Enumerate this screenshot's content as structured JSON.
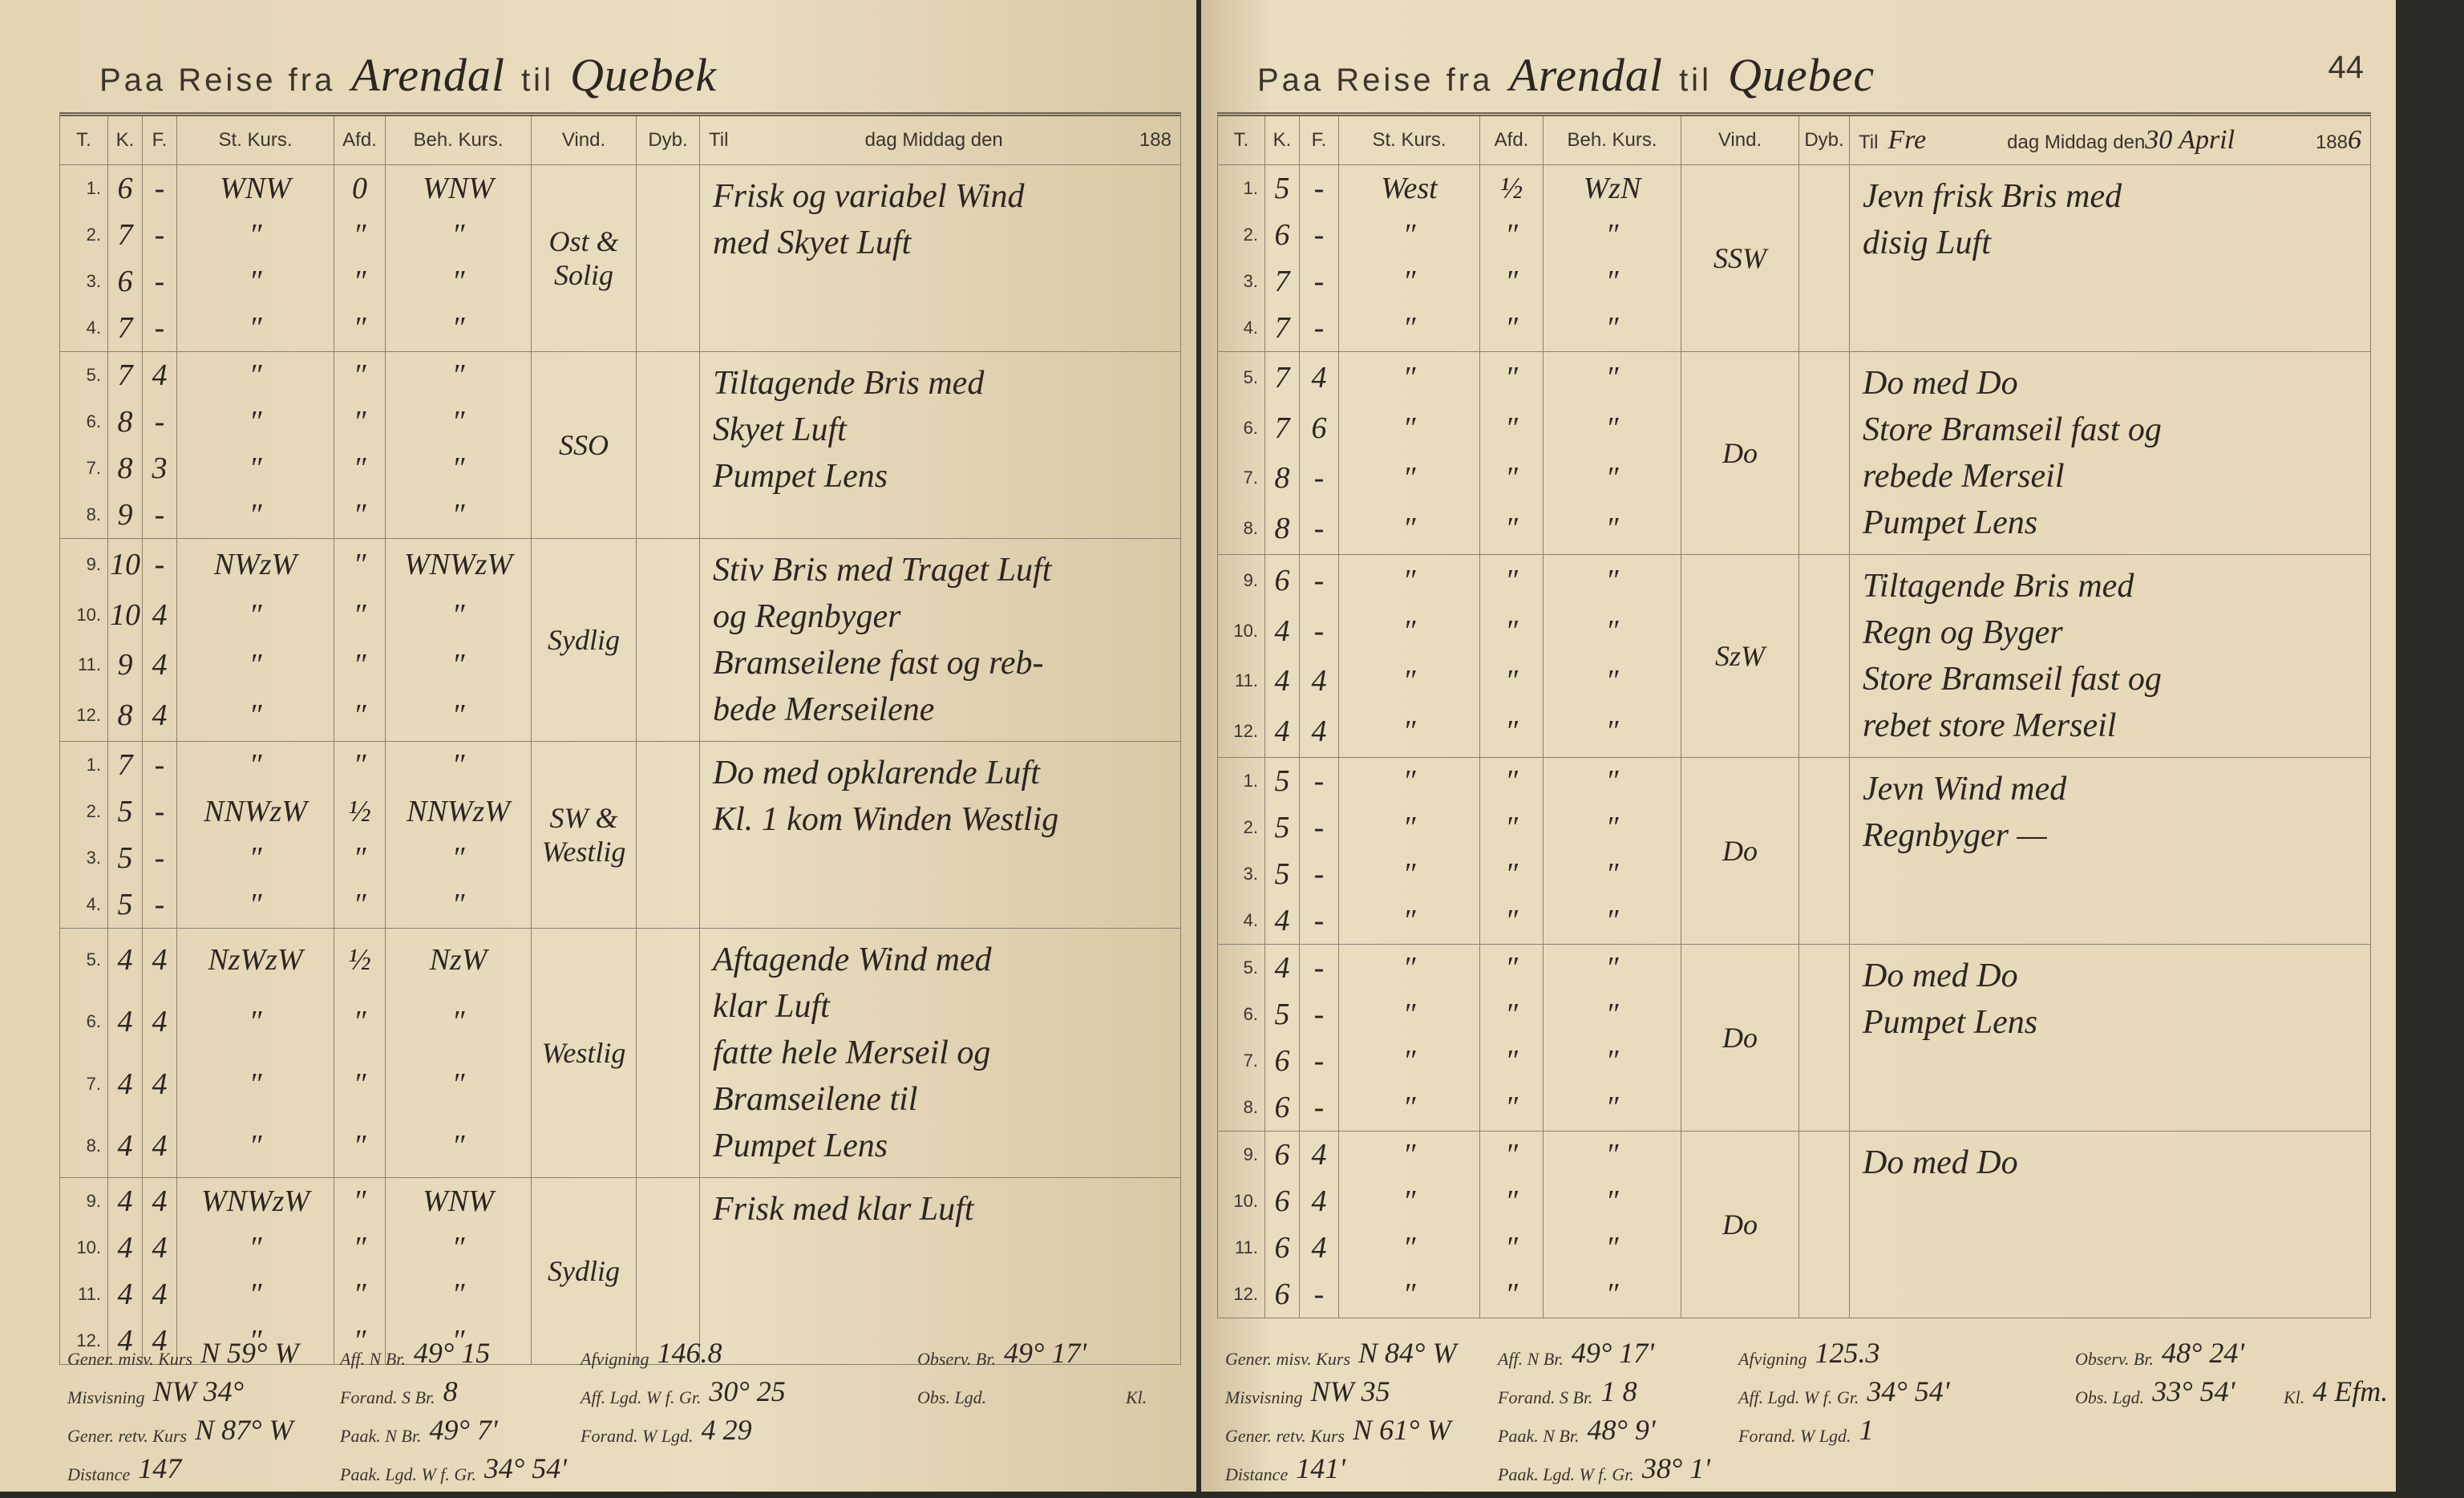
{
  "left_page": {
    "title_prefix": "Paa Reise fra",
    "from": "Arendal",
    "to_label": "til",
    "to": "Quebek",
    "columns": [
      "T.",
      "K.",
      "F.",
      "St. Kurs.",
      "Afd.",
      "Beh. Kurs.",
      "Vind.",
      "Dyb.",
      "Til",
      "dag Middag den",
      "188"
    ],
    "rows": [
      [
        "1.",
        "6",
        "-",
        "WNW",
        "0",
        "WNW"
      ],
      [
        "2.",
        "7",
        "-",
        "″",
        "″",
        "″"
      ],
      [
        "3.",
        "6",
        "-",
        "″",
        "″",
        "″"
      ],
      [
        "4.",
        "7",
        "-",
        "″",
        "″",
        "″"
      ],
      [
        "5.",
        "7",
        "4",
        "″",
        "″",
        "″"
      ],
      [
        "6.",
        "8",
        "-",
        "″",
        "″",
        "″"
      ],
      [
        "7.",
        "8",
        "3",
        "″",
        "″",
        "″"
      ],
      [
        "8.",
        "9",
        "-",
        "″",
        "″",
        "″"
      ],
      [
        "9.",
        "10",
        "-",
        "NWzW",
        "″",
        "WNWzW"
      ],
      [
        "10.",
        "10",
        "4",
        "″",
        "″",
        "″"
      ],
      [
        "11.",
        "9",
        "4",
        "″",
        "″",
        "″"
      ],
      [
        "12.",
        "8",
        "4",
        "″",
        "″",
        "″"
      ],
      [
        "1.",
        "7",
        "-",
        "″",
        "″",
        "″"
      ],
      [
        "2.",
        "5",
        "-",
        "NNWzW",
        "½",
        "NNWzW"
      ],
      [
        "3.",
        "5",
        "-",
        "″",
        "″",
        "″"
      ],
      [
        "4.",
        "5",
        "-",
        "″",
        "″",
        "″"
      ],
      [
        "5.",
        "4",
        "4",
        "NzWzW",
        "½",
        "NzW"
      ],
      [
        "6.",
        "4",
        "4",
        "″",
        "″",
        "″"
      ],
      [
        "7.",
        "4",
        "4",
        "″",
        "″",
        "″"
      ],
      [
        "8.",
        "4",
        "4",
        "″",
        "″",
        "″"
      ],
      [
        "9.",
        "4",
        "4",
        "WNWzW",
        "″",
        "WNW"
      ],
      [
        "10.",
        "4",
        "4",
        "″",
        "″",
        "″"
      ],
      [
        "11.",
        "4",
        "4",
        "″",
        "″",
        "″"
      ],
      [
        "12.",
        "4",
        "4",
        "″",
        "″",
        "″"
      ]
    ],
    "blocks": [
      {
        "wind": "Ost & Solig",
        "remarks": [
          "Frisk og variabel Wind",
          "med Skyet Luft"
        ]
      },
      {
        "wind": "SSO",
        "remarks": [
          "Tiltagende Bris med",
          "Skyet Luft",
          "Pumpet Lens"
        ]
      },
      {
        "wind": "Sydlig",
        "remarks": [
          "Stiv Bris med Traget Luft",
          "og Regnbyger",
          "Bramseilene fast og reb-",
          "bede Merseilene"
        ]
      },
      {
        "wind": "SW & Westlig",
        "remarks": [
          "Do med opklarende Luft",
          "Kl. 1 kom Winden Westlig"
        ]
      },
      {
        "wind": "Westlig",
        "remarks": [
          "Aftagende Wind med",
          "klar Luft",
          "fatte hele Merseil og",
          "Bramseilene til",
          "Pumpet Lens"
        ]
      },
      {
        "wind": "Sydlig",
        "remarks": [
          "Frisk med klar Luft"
        ]
      }
    ],
    "footer": [
      [
        {
          "label": "Gener. misv. Kurs",
          "value": "N 59° W"
        },
        {
          "label": "Aff. N Br.",
          "value": "49° 15"
        },
        {
          "label": "Afvigning",
          "value": "146.8"
        },
        {
          "label": "Observ. Br.",
          "value": "49° 17'"
        }
      ],
      [
        {
          "label": "Misvisning",
          "value": "NW 34°"
        },
        {
          "label": "Forand. S Br.",
          "value": "8"
        },
        {
          "label": "Aff. Lgd. W f. Gr.",
          "value": "30° 25"
        },
        {
          "label": "Obs. Lgd."
        },
        {
          "label": "Kl."
        }
      ],
      [
        {
          "label": "Gener. retv. Kurs",
          "value": "N 87° W"
        },
        {
          "label": "Paak. N Br.",
          "value": "49° 7'"
        },
        {
          "label": "Forand. W Lgd.",
          "value": "4 29"
        }
      ],
      [
        {
          "label": "Distance",
          "value": "147"
        },
        {
          "label": "Paak. Lgd. W f. Gr.",
          "value": "34° 54'"
        }
      ]
    ]
  },
  "right_page": {
    "page_number": "44",
    "title_prefix": "Paa Reise fra",
    "from": "Arendal",
    "to_label": "til",
    "to": "Quebec",
    "columns": [
      "T.",
      "K.",
      "F.",
      "St. Kurs.",
      "Afd.",
      "Beh. Kurs.",
      "Vind.",
      "Dyb.",
      "Til",
      "dag Middag den",
      "188"
    ],
    "day_hand": "Fre",
    "date_hand": "30 April",
    "year_hand": "6",
    "rows": [
      [
        "1.",
        "5",
        "-",
        "West",
        "½",
        "WzN"
      ],
      [
        "2.",
        "6",
        "-",
        "″",
        "″",
        "″"
      ],
      [
        "3.",
        "7",
        "-",
        "″",
        "″",
        "″"
      ],
      [
        "4.",
        "7",
        "-",
        "″",
        "″",
        "″"
      ],
      [
        "5.",
        "7",
        "4",
        "″",
        "″",
        "″"
      ],
      [
        "6.",
        "7",
        "6",
        "″",
        "″",
        "″"
      ],
      [
        "7.",
        "8",
        "-",
        "″",
        "″",
        "″"
      ],
      [
        "8.",
        "8",
        "-",
        "″",
        "″",
        "″"
      ],
      [
        "9.",
        "6",
        "-",
        "″",
        "″",
        "″"
      ],
      [
        "10.",
        "4",
        "-",
        "″",
        "″",
        "″"
      ],
      [
        "11.",
        "4",
        "4",
        "″",
        "″",
        "″"
      ],
      [
        "12.",
        "4",
        "4",
        "″",
        "″",
        "″"
      ],
      [
        "1.",
        "5",
        "-",
        "″",
        "″",
        "″"
      ],
      [
        "2.",
        "5",
        "-",
        "″",
        "″",
        "″"
      ],
      [
        "3.",
        "5",
        "-",
        "″",
        "″",
        "″"
      ],
      [
        "4.",
        "4",
        "-",
        "″",
        "″",
        "″"
      ],
      [
        "5.",
        "4",
        "-",
        "″",
        "″",
        "″"
      ],
      [
        "6.",
        "5",
        "-",
        "″",
        "″",
        "″"
      ],
      [
        "7.",
        "6",
        "-",
        "″",
        "″",
        "″"
      ],
      [
        "8.",
        "6",
        "-",
        "″",
        "″",
        "″"
      ],
      [
        "9.",
        "6",
        "4",
        "″",
        "″",
        "″"
      ],
      [
        "10.",
        "6",
        "4",
        "″",
        "″",
        "″"
      ],
      [
        "11.",
        "6",
        "4",
        "″",
        "″",
        "″"
      ],
      [
        "12.",
        "6",
        "-",
        "″",
        "″",
        "″"
      ]
    ],
    "blocks": [
      {
        "wind": "SSW",
        "remarks": [
          "Jevn frisk Bris med",
          "disig Luft"
        ]
      },
      {
        "wind": "Do",
        "remarks": [
          "Do med Do",
          "Store Bramseil fast og",
          "rebede Merseil",
          "Pumpet Lens"
        ]
      },
      {
        "wind": "SzW",
        "remarks": [
          "Tiltagende Bris med",
          "Regn og Byger",
          "Store Bramseil fast og",
          "rebet store Merseil"
        ]
      },
      {
        "wind": "Do",
        "remarks": [
          "Jevn Wind med",
          "Regnbyger —"
        ]
      },
      {
        "wind": "Do",
        "remarks": [
          "Do med Do",
          "Pumpet Lens"
        ]
      },
      {
        "wind": "Do",
        "remarks": [
          "Do med Do"
        ]
      }
    ],
    "footer": [
      [
        {
          "label": "Gener. misv. Kurs",
          "value": "N 84° W"
        },
        {
          "label": "Aff. N Br.",
          "value": "49° 17'"
        },
        {
          "label": "Afvigning",
          "value": "125.3"
        },
        {
          "label": "Observ. Br.",
          "value": "48° 24'"
        }
      ],
      [
        {
          "label": "Misvisning",
          "value": "NW 35"
        },
        {
          "label": "Forand. S Br.",
          "value": "1 8"
        },
        {
          "label": "Aff. Lgd. W f. Gr.",
          "value": "34° 54'"
        },
        {
          "label": "Obs. Lgd.",
          "value": "33° 54'"
        },
        {
          "label": "Kl.",
          "value": "4 Efm."
        }
      ],
      [
        {
          "label": "Gener. retv. Kurs",
          "value": "N 61° W"
        },
        {
          "label": "Paak. N Br.",
          "value": "48° 9'"
        },
        {
          "label": "Forand. W Lgd.",
          "value": "1"
        }
      ],
      [
        {
          "label": "Distance",
          "value": "141'"
        },
        {
          "label": "Paak. Lgd. W f. Gr.",
          "value": "38° 1'"
        }
      ]
    ]
  }
}
